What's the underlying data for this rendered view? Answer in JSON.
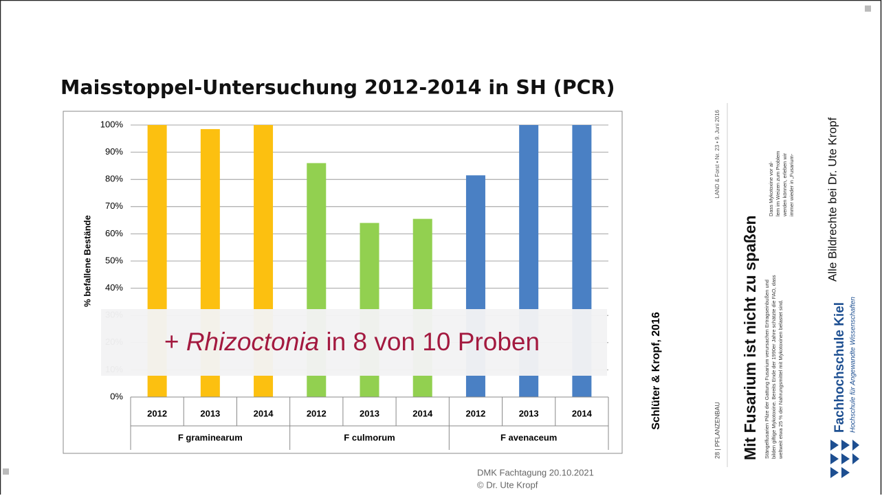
{
  "chart_data": {
    "type": "bar",
    "title": "Maisstoppel-Untersuchung 2012-2014 in SH (PCR)",
    "y_label": "% befallene Bestände",
    "groups": [
      {
        "name": "F graminearum",
        "color": "#fcc010",
        "categories": [
          "2012",
          "2013",
          "2014"
        ],
        "values": [
          100,
          98.5,
          100
        ]
      },
      {
        "name": "F culmorum",
        "color": "#92d050",
        "categories": [
          "2012",
          "2013",
          "2014"
        ],
        "values": [
          86,
          64,
          65.5
        ]
      },
      {
        "name": "F avenaceum",
        "color": "#4a80c4",
        "categories": [
          "2012",
          "2013",
          "2014"
        ],
        "values": [
          81.5,
          100,
          100
        ]
      }
    ],
    "ylim": [
      0,
      100
    ],
    "yticks": [
      {
        "value": 0,
        "label": "0%"
      },
      {
        "value": 10,
        "label": "10%"
      },
      {
        "value": 20,
        "label": "20%"
      },
      {
        "value": 30,
        "label": "30%"
      },
      {
        "value": 40,
        "label": "40%"
      },
      {
        "value": 50,
        "label": "50%"
      },
      {
        "value": 60,
        "label": "60%"
      },
      {
        "value": 70,
        "label": "70%"
      },
      {
        "value": 80,
        "label": "80%"
      },
      {
        "value": 90,
        "label": "90%"
      },
      {
        "value": 100,
        "label": "100%"
      }
    ],
    "grid": true,
    "annotation": {
      "prefix": "+ ",
      "italic": "Rhizoctonia",
      "suffix": " in 8 von 10 Proben"
    }
  },
  "source": "Schlüter & Kropf, 2016",
  "clipping": {
    "header": "LAND & Forst • Nr. 23 • 9. Juni 2016",
    "section": "28 | PFLANZENBAU",
    "headline": "Mit Fusarium ist nicht zu spaßen",
    "lead": [
      "Stängelfusarien  Pilze der Gattung Fusarium verursachen Ertragseinbußen und",
      "bilden giftige Mykotoxine. Bereits Ende der 1990er Jahre schätzte die FAO, dass",
      "weltweit etwa 25 % der Nahrungsmittel mit Mykotoxinen belastet sind."
    ],
    "body": [
      "Dass Mykotoxine vor al-",
      "lem im Weizen zum Problem",
      "werden können, erleben wir",
      "immer wieder in „Fusarium-"
    ]
  },
  "logo": {
    "name": "Fachhochschule Kiel",
    "subtitle": "Hochschule für Angewandte Wissenschaften"
  },
  "rights": "Alle Bildrechte bei Dr. Ute Kropf",
  "footer": [
    "DMK Fachtagung 20.10.2021",
    "© Dr. Ute Kropf"
  ]
}
